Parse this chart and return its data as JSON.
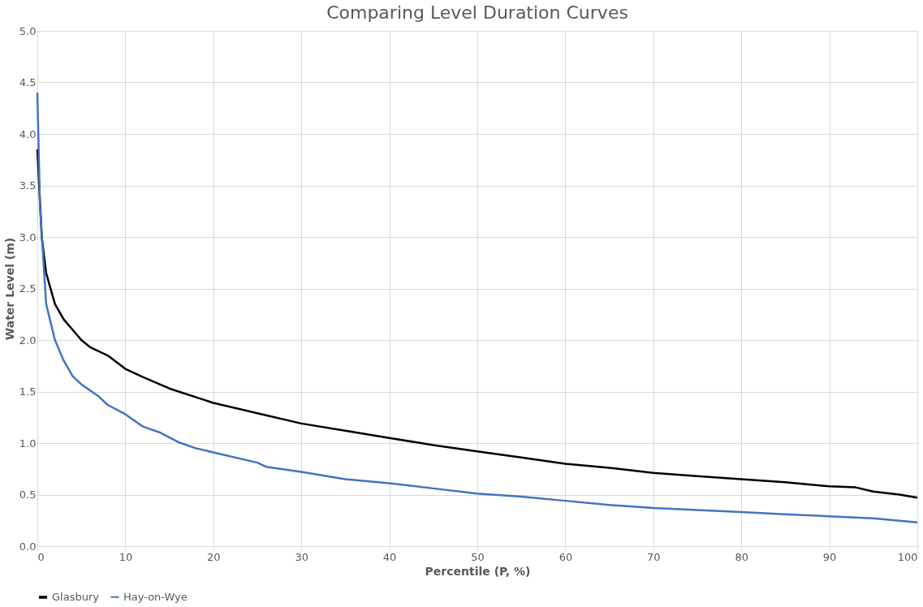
{
  "chart_data": {
    "type": "line",
    "title": "Comparing Level Duration Curves",
    "xlabel": "Percentile (P, %)",
    "ylabel": "Water Level (m)",
    "xlim": [
      0,
      100
    ],
    "xticks": [
      0,
      10,
      20,
      30,
      40,
      50,
      60,
      70,
      80,
      90,
      100
    ],
    "ylim": [
      0,
      5
    ],
    "yticks": [
      {
        "value": 0,
        "label": "0.0"
      },
      {
        "value": 0.5,
        "label": "0.5"
      },
      {
        "value": 1,
        "label": "1.0"
      },
      {
        "value": 1.5,
        "label": "1.5"
      },
      {
        "value": 2,
        "label": "2.0"
      },
      {
        "value": 2.5,
        "label": "2.5"
      },
      {
        "value": 3,
        "label": "3.0"
      },
      {
        "value": 3.5,
        "label": "3.5"
      },
      {
        "value": 4,
        "label": "4.0"
      },
      {
        "value": 4.5,
        "label": "4.5"
      },
      {
        "value": 5,
        "label": "5.0"
      }
    ],
    "grid": true,
    "legend": "bottom",
    "marker": "none",
    "line_style": "solid",
    "series": [
      {
        "name": "Glasbury",
        "color": "#000000",
        "x": [
          0,
          0.5,
          1,
          2,
          3,
          4,
          5,
          6,
          8,
          10,
          12,
          15,
          20,
          25,
          30,
          35,
          40,
          45,
          50,
          55,
          60,
          65,
          70,
          75,
          80,
          85,
          90,
          93,
          95,
          98,
          100
        ],
        "values": [
          3.85,
          3.0,
          2.65,
          2.35,
          2.2,
          2.1,
          2.0,
          1.93,
          1.85,
          1.72,
          1.64,
          1.53,
          1.39,
          1.29,
          1.19,
          1.12,
          1.05,
          0.98,
          0.92,
          0.86,
          0.8,
          0.76,
          0.71,
          0.68,
          0.65,
          0.62,
          0.58,
          0.57,
          0.53,
          0.5,
          0.47
        ]
      },
      {
        "name": "Hay-on-Wye",
        "color": "#4472c4",
        "x": [
          0,
          0.3,
          1,
          2,
          3,
          4,
          5,
          7,
          8,
          10,
          12,
          14,
          16,
          18,
          20,
          25,
          26,
          30,
          35,
          40,
          45,
          50,
          55,
          60,
          65,
          70,
          75,
          80,
          85,
          90,
          95,
          100
        ],
        "values": [
          4.4,
          3.3,
          2.35,
          2.0,
          1.8,
          1.65,
          1.57,
          1.45,
          1.37,
          1.28,
          1.16,
          1.1,
          1.01,
          0.95,
          0.91,
          0.81,
          0.77,
          0.72,
          0.65,
          0.61,
          0.56,
          0.51,
          0.48,
          0.44,
          0.4,
          0.37,
          0.35,
          0.33,
          0.31,
          0.29,
          0.27,
          0.23
        ]
      }
    ]
  }
}
